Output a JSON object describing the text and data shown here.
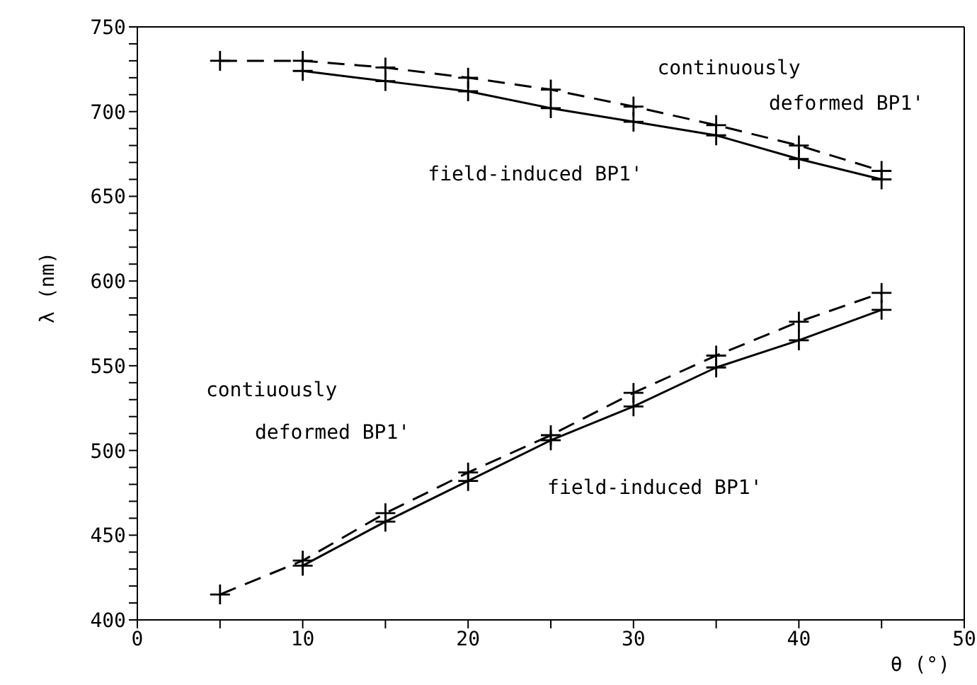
{
  "chart_data": {
    "type": "line",
    "xlabel": "θ (°)",
    "ylabel": "λ (nm)",
    "xlim": [
      0,
      50
    ],
    "ylim": [
      400,
      750
    ],
    "xticks": [
      0,
      {
        "value": 5,
        "label": null
      },
      10,
      {
        "value": 15,
        "label": null
      },
      20,
      {
        "value": 25,
        "label": null
      },
      30,
      {
        "value": 35,
        "label": null
      },
      40,
      {
        "value": 45,
        "label": null
      },
      50
    ],
    "yticks": [
      400,
      {
        "value": 410,
        "label": null
      },
      {
        "value": 420,
        "label": null
      },
      {
        "value": 430,
        "label": null
      },
      {
        "value": 440,
        "label": null
      },
      450,
      {
        "value": 460,
        "label": null
      },
      {
        "value": 470,
        "label": null
      },
      {
        "value": 480,
        "label": null
      },
      {
        "value": 490,
        "label": null
      },
      500,
      {
        "value": 510,
        "label": null
      },
      {
        "value": 520,
        "label": null
      },
      {
        "value": 530,
        "label": null
      },
      {
        "value": 540,
        "label": null
      },
      550,
      {
        "value": 560,
        "label": null
      },
      {
        "value": 570,
        "label": null
      },
      {
        "value": 580,
        "label": null
      },
      {
        "value": 590,
        "label": null
      },
      600,
      {
        "value": 610,
        "label": null
      },
      {
        "value": 620,
        "label": null
      },
      {
        "value": 630,
        "label": null
      },
      {
        "value": 640,
        "label": null
      },
      650,
      {
        "value": 660,
        "label": null
      },
      {
        "value": 670,
        "label": null
      },
      {
        "value": 680,
        "label": null
      },
      {
        "value": 690,
        "label": null
      },
      700,
      {
        "value": 710,
        "label": null
      },
      {
        "value": 720,
        "label": null
      },
      {
        "value": 730,
        "label": null
      },
      {
        "value": 740,
        "label": null
      },
      750
    ],
    "series": [
      {
        "name": "continuously deformed BP1'",
        "color": "#000000",
        "line_style": "dashed",
        "marker": "cross",
        "x": [
          5,
          10,
          15,
          20,
          25,
          30,
          35,
          40,
          45
        ],
        "values": [
          730,
          730,
          726,
          720,
          713,
          703,
          692,
          680,
          665
        ]
      },
      {
        "name": "field-induced BP1'",
        "color": "#000000",
        "line_style": "solid",
        "marker": "cross",
        "x": [
          10,
          15,
          20,
          25,
          30,
          35,
          40,
          45
        ],
        "values": [
          724,
          718,
          712,
          702,
          694,
          686,
          672,
          660
        ]
      },
      {
        "name": "contiuously deformed BP1'",
        "color": "#000000",
        "line_style": "dashed",
        "marker": "cross",
        "x": [
          5,
          10,
          15,
          20,
          25,
          30,
          35,
          40,
          45
        ],
        "values": [
          415,
          435,
          463,
          487,
          509,
          534,
          556,
          576,
          593
        ]
      },
      {
        "name": "field-induced BP1'",
        "color": "#000000",
        "line_style": "solid",
        "marker": "cross",
        "x": [
          10,
          15,
          20,
          25,
          30,
          35,
          40,
          45
        ],
        "values": [
          432,
          458,
          482,
          506,
          526,
          549,
          565,
          583
        ]
      }
    ]
  }
}
